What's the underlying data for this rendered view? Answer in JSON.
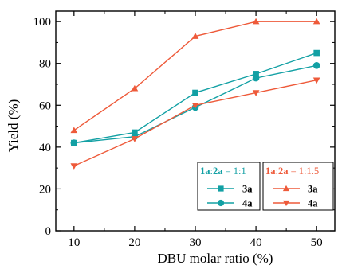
{
  "chart_data": {
    "type": "line",
    "xlabel": "DBU molar ratio (%)",
    "ylabel": "Yield (%)",
    "x": [
      10,
      20,
      30,
      40,
      50
    ],
    "xlim": [
      7,
      53
    ],
    "ylim": [
      0,
      105
    ],
    "xticks": [
      10,
      20,
      30,
      40,
      50
    ],
    "yticks": [
      0,
      20,
      40,
      60,
      80,
      100
    ],
    "grid": false,
    "colors": {
      "teal": "#12a0a4",
      "orange": "#ee5a3a",
      "axis": "#000000"
    },
    "legend_groups": [
      {
        "placement": "bottom-center",
        "title_bold_part": "1a",
        "title_sep": ":",
        "title_bold_part2": "2a",
        "title_rest": " = 1:1",
        "color": "#12a0a4",
        "entries": [
          {
            "label": "3a",
            "marker": "square"
          },
          {
            "label": "4a",
            "marker": "circle"
          }
        ]
      },
      {
        "placement": "bottom-right",
        "title_bold_part": "1a",
        "title_sep": ":",
        "title_bold_part2": "2a",
        "title_rest": " = 1:1.5",
        "color": "#ee5a3a",
        "entries": [
          {
            "label": "3a",
            "marker": "triangle-up"
          },
          {
            "label": "4a",
            "marker": "triangle-down"
          }
        ]
      }
    ],
    "series": [
      {
        "name": "3a",
        "group": "1a:2a = 1:1",
        "color": "#12a0a4",
        "marker": "square",
        "values": [
          42,
          47,
          66,
          75,
          85
        ]
      },
      {
        "name": "4a",
        "group": "1a:2a = 1:1",
        "color": "#12a0a4",
        "marker": "circle",
        "values": [
          42,
          45,
          59,
          73,
          79
        ]
      },
      {
        "name": "3a",
        "group": "1a:2a = 1:1.5",
        "color": "#ee5a3a",
        "marker": "triangle-up",
        "values": [
          48,
          68,
          93,
          100,
          100
        ]
      },
      {
        "name": "4a",
        "group": "1a:2a = 1:1.5",
        "color": "#ee5a3a",
        "marker": "triangle-down",
        "values": [
          31,
          44,
          60,
          66,
          72
        ]
      }
    ]
  }
}
